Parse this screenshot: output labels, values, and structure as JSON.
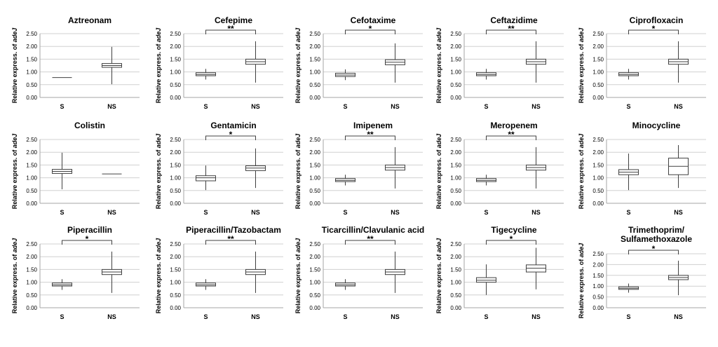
{
  "chart_data": [
    {
      "type": "box",
      "title_lines": [
        "Aztreonam"
      ],
      "significance": "",
      "ylabel": "Relative express. of adeJ",
      "ylim": [
        0,
        2.5
      ],
      "yticks": [
        "0.00",
        "0.50",
        "1.00",
        "1.50",
        "2.00",
        "2.50"
      ],
      "categories": [
        "S",
        "NS"
      ],
      "boxes": [
        {
          "min": 0.78,
          "q1": 0.78,
          "median": 0.78,
          "q3": 0.78,
          "max": 0.78
        },
        {
          "min": 0.52,
          "q1": 1.18,
          "median": 1.25,
          "q3": 1.33,
          "max": 1.98
        }
      ]
    },
    {
      "type": "box",
      "title_lines": [
        "Cefepime"
      ],
      "significance": "**",
      "ylabel": "Relative express. of adeJ",
      "ylim": [
        0,
        2.5
      ],
      "yticks": [
        "0.00",
        "0.50",
        "1.00",
        "1.50",
        "2.00",
        "2.50"
      ],
      "categories": [
        "S",
        "NS"
      ],
      "boxes": [
        {
          "min": 0.7,
          "q1": 0.85,
          "median": 0.9,
          "q3": 0.97,
          "max": 1.12
        },
        {
          "min": 0.58,
          "q1": 1.3,
          "median": 1.4,
          "q3": 1.5,
          "max": 2.2
        }
      ]
    },
    {
      "type": "box",
      "title_lines": [
        "Cefotaxime"
      ],
      "significance": "*",
      "ylabel": "Relative express. of adeJ",
      "ylim": [
        0,
        2.5
      ],
      "yticks": [
        "0.00",
        "0.50",
        "1.00",
        "1.50",
        "2.00",
        "2.50"
      ],
      "categories": [
        "S",
        "NS"
      ],
      "boxes": [
        {
          "min": 0.68,
          "q1": 0.82,
          "median": 0.88,
          "q3": 0.95,
          "max": 1.1
        },
        {
          "min": 0.58,
          "q1": 1.28,
          "median": 1.38,
          "q3": 1.48,
          "max": 2.12
        }
      ]
    },
    {
      "type": "box",
      "title_lines": [
        "Ceftazidime"
      ],
      "significance": "**",
      "ylabel": "Relative express. of adeJ",
      "ylim": [
        0,
        2.5
      ],
      "yticks": [
        "0.00",
        "0.50",
        "1.00",
        "1.50",
        "2.00",
        "2.50"
      ],
      "categories": [
        "S",
        "NS"
      ],
      "boxes": [
        {
          "min": 0.7,
          "q1": 0.85,
          "median": 0.9,
          "q3": 0.97,
          "max": 1.12
        },
        {
          "min": 0.58,
          "q1": 1.3,
          "median": 1.4,
          "q3": 1.5,
          "max": 2.2
        }
      ]
    },
    {
      "type": "box",
      "title_lines": [
        "Ciprofloxacin"
      ],
      "significance": "*",
      "ylabel": "Relative express. of adeJ",
      "ylim": [
        0,
        2.5
      ],
      "yticks": [
        "0.00",
        "0.50",
        "1.00",
        "1.50",
        "2.00",
        "2.50"
      ],
      "categories": [
        "S",
        "NS"
      ],
      "boxes": [
        {
          "min": 0.7,
          "q1": 0.85,
          "median": 0.9,
          "q3": 0.97,
          "max": 1.12
        },
        {
          "min": 0.58,
          "q1": 1.3,
          "median": 1.4,
          "q3": 1.5,
          "max": 2.2
        }
      ]
    },
    {
      "type": "box",
      "title_lines": [
        "Colistin"
      ],
      "significance": "",
      "ylabel": "Relative express. of adeJ",
      "ylim": [
        0,
        2.5
      ],
      "yticks": [
        "0.00",
        "0.50",
        "1.00",
        "1.50",
        "2.00",
        "2.50"
      ],
      "categories": [
        "S",
        "NS"
      ],
      "boxes": [
        {
          "min": 0.55,
          "q1": 1.17,
          "median": 1.25,
          "q3": 1.33,
          "max": 1.98
        },
        {
          "min": 1.15,
          "q1": 1.15,
          "median": 1.15,
          "q3": 1.15,
          "max": 1.15
        }
      ]
    },
    {
      "type": "box",
      "title_lines": [
        "Gentamicin"
      ],
      "significance": "*",
      "ylabel": "Relative express. of adeJ",
      "ylim": [
        0,
        2.5
      ],
      "yticks": [
        "0.00",
        "0.50",
        "1.00",
        "1.50",
        "2.00",
        "2.50"
      ],
      "categories": [
        "S",
        "NS"
      ],
      "boxes": [
        {
          "min": 0.52,
          "q1": 0.88,
          "median": 1.0,
          "q3": 1.08,
          "max": 1.48
        },
        {
          "min": 0.6,
          "q1": 1.28,
          "median": 1.38,
          "q3": 1.47,
          "max": 2.15
        }
      ]
    },
    {
      "type": "box",
      "title_lines": [
        "Imipenem"
      ],
      "significance": "**",
      "ylabel": "Relative express. of adeJ",
      "ylim": [
        0,
        2.5
      ],
      "yticks": [
        "0.00",
        "0.50",
        "1.00",
        "1.50",
        "2.00",
        "2.50"
      ],
      "categories": [
        "S",
        "NS"
      ],
      "boxes": [
        {
          "min": 0.7,
          "q1": 0.85,
          "median": 0.9,
          "q3": 0.97,
          "max": 1.12
        },
        {
          "min": 0.58,
          "q1": 1.3,
          "median": 1.4,
          "q3": 1.5,
          "max": 2.2
        }
      ]
    },
    {
      "type": "box",
      "title_lines": [
        "Meropenem"
      ],
      "significance": "**",
      "ylabel": "Relative express. of adeJ",
      "ylim": [
        0,
        2.5
      ],
      "yticks": [
        "0.00",
        "0.50",
        "1.00",
        "1.50",
        "2.00",
        "2.50"
      ],
      "categories": [
        "S",
        "NS"
      ],
      "boxes": [
        {
          "min": 0.7,
          "q1": 0.85,
          "median": 0.9,
          "q3": 0.97,
          "max": 1.12
        },
        {
          "min": 0.58,
          "q1": 1.3,
          "median": 1.4,
          "q3": 1.5,
          "max": 2.2
        }
      ]
    },
    {
      "type": "box",
      "title_lines": [
        "Minocycline"
      ],
      "significance": "",
      "ylabel": "Relative express. of adeJ",
      "ylim": [
        0,
        2.5
      ],
      "yticks": [
        "0.00",
        "0.50",
        "1.00",
        "1.50",
        "2.00",
        "2.50"
      ],
      "categories": [
        "S",
        "NS"
      ],
      "boxes": [
        {
          "min": 0.52,
          "q1": 1.12,
          "median": 1.22,
          "q3": 1.32,
          "max": 1.95
        },
        {
          "min": 0.6,
          "q1": 1.12,
          "median": 1.45,
          "q3": 1.77,
          "max": 2.28
        }
      ]
    },
    {
      "type": "box",
      "title_lines": [
        "Piperacillin"
      ],
      "significance": "*",
      "ylabel": "Relative express. of adeJ",
      "ylim": [
        0,
        2.5
      ],
      "yticks": [
        "0.00",
        "0.50",
        "1.00",
        "1.50",
        "2.00",
        "2.50"
      ],
      "categories": [
        "S",
        "NS"
      ],
      "boxes": [
        {
          "min": 0.7,
          "q1": 0.85,
          "median": 0.9,
          "q3": 0.97,
          "max": 1.12
        },
        {
          "min": 0.58,
          "q1": 1.3,
          "median": 1.4,
          "q3": 1.5,
          "max": 2.2
        }
      ]
    },
    {
      "type": "box",
      "title_lines": [
        "Piperacillin/Tazobactam"
      ],
      "significance": "**",
      "ylabel": "Relative express. of adeJ",
      "ylim": [
        0,
        2.5
      ],
      "yticks": [
        "0.00",
        "0.50",
        "1.00",
        "1.50",
        "2.00",
        "2.50"
      ],
      "categories": [
        "S",
        "NS"
      ],
      "boxes": [
        {
          "min": 0.7,
          "q1": 0.85,
          "median": 0.9,
          "q3": 0.97,
          "max": 1.12
        },
        {
          "min": 0.58,
          "q1": 1.3,
          "median": 1.4,
          "q3": 1.5,
          "max": 2.2
        }
      ]
    },
    {
      "type": "box",
      "title_lines": [
        "Ticarcillin/Clavulanic acid"
      ],
      "significance": "**",
      "ylabel": "Relative express. of adeJ",
      "ylim": [
        0,
        2.5
      ],
      "yticks": [
        "0.00",
        "0.50",
        "1.00",
        "1.50",
        "2.00",
        "2.50"
      ],
      "categories": [
        "S",
        "NS"
      ],
      "boxes": [
        {
          "min": 0.7,
          "q1": 0.85,
          "median": 0.9,
          "q3": 0.97,
          "max": 1.12
        },
        {
          "min": 0.58,
          "q1": 1.3,
          "median": 1.4,
          "q3": 1.5,
          "max": 2.2
        }
      ]
    },
    {
      "type": "box",
      "title_lines": [
        "Tigecycline"
      ],
      "significance": "*",
      "ylabel": "Relative express. of adeJ",
      "ylim": [
        0,
        2.5
      ],
      "yticks": [
        "0.00",
        "0.50",
        "1.00",
        "1.50",
        "2.00",
        "2.50"
      ],
      "categories": [
        "S",
        "NS"
      ],
      "boxes": [
        {
          "min": 0.5,
          "q1": 1.0,
          "median": 1.08,
          "q3": 1.18,
          "max": 1.7
        },
        {
          "min": 0.72,
          "q1": 1.4,
          "median": 1.55,
          "q3": 1.68,
          "max": 2.35
        }
      ]
    },
    {
      "type": "box",
      "title_lines": [
        "Trimethoprim/",
        "Sulfamethoxazole"
      ],
      "significance": "*",
      "ylabel": "Relative express. of adeJ",
      "ylim": [
        0,
        2.5
      ],
      "yticks": [
        "0.00",
        "0.50",
        "1.00",
        "1.50",
        "2.00",
        "2.50"
      ],
      "categories": [
        "S",
        "NS"
      ],
      "boxes": [
        {
          "min": 0.7,
          "q1": 0.85,
          "median": 0.9,
          "q3": 0.97,
          "max": 1.12
        },
        {
          "min": 0.58,
          "q1": 1.3,
          "median": 1.4,
          "q3": 1.5,
          "max": 2.18
        }
      ]
    }
  ]
}
